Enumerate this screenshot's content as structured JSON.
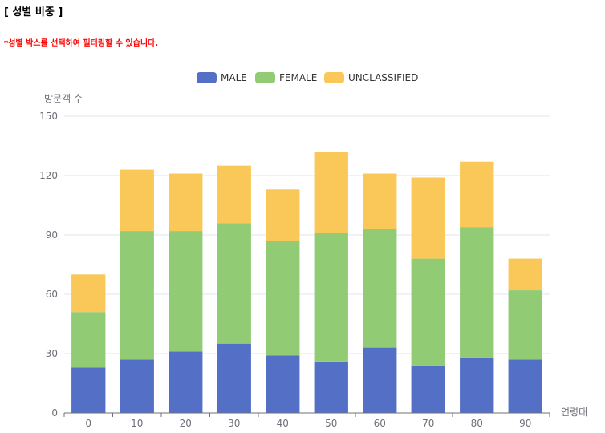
{
  "header": {
    "title": "[ 성별 비중 ]",
    "notice": "*성별 박스를 선택하여 필터링할 수 있습니다.",
    "notice_color": "#ff0000"
  },
  "chart_data": {
    "type": "bar",
    "stacked": true,
    "categories": [
      "0",
      "10",
      "20",
      "30",
      "40",
      "50",
      "60",
      "70",
      "80",
      "90"
    ],
    "series": [
      {
        "name": "MALE",
        "color": "#5470c6",
        "values": [
          23,
          27,
          31,
          35,
          29,
          26,
          33,
          24,
          28,
          27
        ]
      },
      {
        "name": "FEMALE",
        "color": "#91cc75",
        "values": [
          28,
          65,
          61,
          61,
          58,
          65,
          60,
          54,
          66,
          35
        ]
      },
      {
        "name": "UNCLASSIFIED",
        "color": "#fac858",
        "values": [
          19,
          31,
          29,
          29,
          26,
          41,
          28,
          41,
          33,
          16
        ]
      }
    ],
    "ylabel": "방문객 수",
    "xlabel": "연령대",
    "ylim": [
      0,
      150
    ],
    "yticks": [
      0,
      30,
      60,
      90,
      120,
      150
    ],
    "legend_position": "top-center",
    "grid": true
  }
}
